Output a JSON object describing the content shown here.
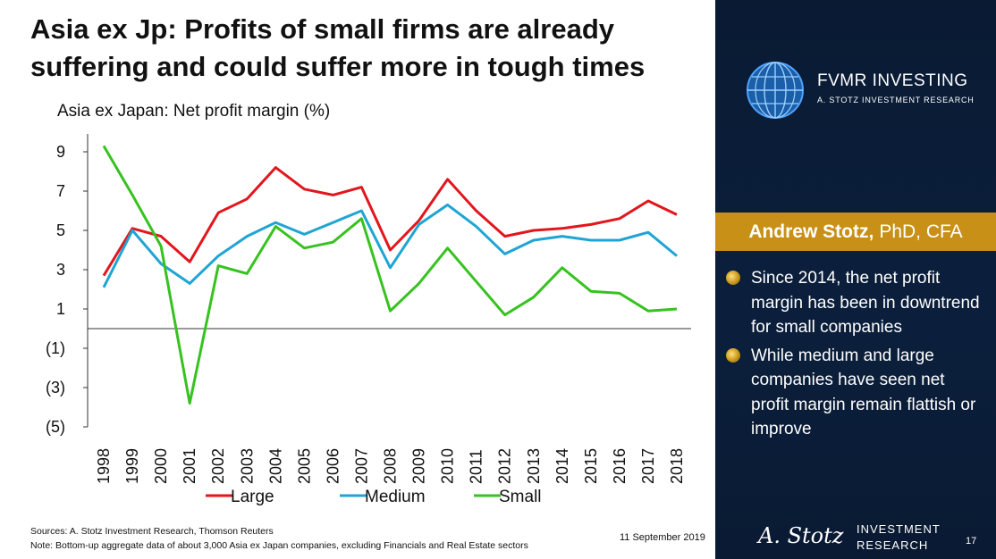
{
  "slide": {
    "title": "Asia ex Jp: Profits of small firms are already suffering and could suffer more in tough times",
    "subtitle": "Asia ex Japan: Net profit margin (%)",
    "sources": "Sources: A. Stotz Investment Research, Thomson Reuters",
    "note": "Note: Bottom-up aggregate data of about 3,000 Asia ex Japan companies, excluding Financials and Real Estate sectors",
    "date": "11 September 2019",
    "page_number": "17"
  },
  "brand": {
    "name": "FVMR INVESTING",
    "tagline": "A. STOTZ INVESTMENT RESEARCH",
    "footer_logo": "A. Stotz",
    "footer_line1": "INVESTMENT",
    "footer_line2": "RESEARCH"
  },
  "presenter": {
    "name": "Andrew Stotz,",
    "credentials": "PhD, CFA"
  },
  "bullets": [
    "Since 2014, the net profit margin has been in downtrend for small companies",
    "While medium and large companies have seen net profit margin remain flattish or improve"
  ],
  "chart_data": {
    "type": "line",
    "title": "Asia ex Japan: Net profit margin (%)",
    "xlabel": "",
    "ylabel": "",
    "ylim": [
      -5,
      10
    ],
    "yticks": [
      9,
      7,
      5,
      3,
      1,
      -1,
      -3,
      -5
    ],
    "ytick_labels": [
      "9",
      "7",
      "5",
      "3",
      "1",
      "(1)",
      "(3)",
      "(5)"
    ],
    "categories": [
      "1998",
      "1999",
      "2000",
      "2001",
      "2002",
      "2003",
      "2004",
      "2005",
      "2006",
      "2007",
      "2008",
      "2009",
      "2010",
      "2011",
      "2012",
      "2013",
      "2014",
      "2015",
      "2016",
      "2017",
      "2018"
    ],
    "series": [
      {
        "name": "Large",
        "color": "#e2161d",
        "values": [
          2.7,
          5.1,
          4.7,
          3.4,
          5.9,
          6.6,
          8.2,
          7.1,
          6.8,
          7.2,
          4.0,
          5.5,
          7.6,
          6.0,
          4.7,
          5.0,
          5.1,
          5.3,
          5.6,
          6.5,
          5.8
        ]
      },
      {
        "name": "Medium",
        "color": "#1fa5d3",
        "values": [
          2.1,
          5.0,
          3.3,
          2.3,
          3.7,
          4.7,
          5.4,
          4.8,
          5.4,
          6.0,
          3.1,
          5.3,
          6.3,
          5.2,
          3.8,
          4.5,
          4.7,
          4.5,
          4.5,
          4.9,
          3.7
        ]
      },
      {
        "name": "Small",
        "color": "#36c21f",
        "values": [
          9.3,
          6.8,
          4.2,
          -3.8,
          3.2,
          2.8,
          5.2,
          4.1,
          4.4,
          5.6,
          0.9,
          2.3,
          4.1,
          2.4,
          0.7,
          1.6,
          3.1,
          1.9,
          1.8,
          0.9,
          1.0
        ]
      }
    ],
    "legend_position": "bottom"
  }
}
